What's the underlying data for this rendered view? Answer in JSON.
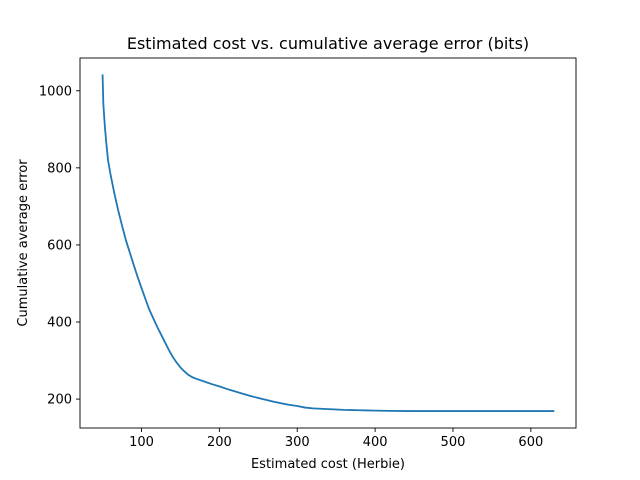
{
  "chart_data": {
    "type": "line",
    "title": "Estimated cost vs. cumulative average error (bits)",
    "xlabel": "Estimated cost (Herbie)",
    "ylabel": "Cumulative average error",
    "xlim": [
      21,
      658
    ],
    "ylim": [
      125,
      1085
    ],
    "xticks": [
      100,
      200,
      300,
      400,
      500,
      600
    ],
    "yticks": [
      200,
      400,
      600,
      800,
      1000
    ],
    "grid": false,
    "legend": "none",
    "series": [
      {
        "color": "#1f77b4",
        "x": [
          50,
          51,
          53,
          55,
          57,
          60,
          65,
          70,
          75,
          80,
          85,
          90,
          95,
          100,
          105,
          110,
          115,
          120,
          125,
          130,
          135,
          140,
          145,
          150,
          155,
          160,
          165,
          170,
          180,
          190,
          200,
          210,
          220,
          230,
          240,
          250,
          260,
          270,
          280,
          290,
          300,
          310,
          320,
          330,
          340,
          350,
          360,
          370,
          380,
          390,
          400,
          420,
          440,
          460,
          480,
          500,
          520,
          540,
          560,
          580,
          600,
          629
        ],
        "y": [
          1040,
          965,
          905,
          860,
          820,
          785,
          735,
          690,
          650,
          612,
          580,
          548,
          517,
          488,
          460,
          432,
          410,
          388,
          368,
          348,
          328,
          310,
          295,
          282,
          272,
          263,
          257,
          253,
          246,
          239,
          233,
          226,
          220,
          214,
          208,
          203,
          198,
          193,
          189,
          185,
          182,
          178,
          176,
          175,
          174,
          173,
          172,
          171.5,
          171,
          170.5,
          170,
          169.5,
          169,
          169,
          169,
          169,
          169,
          169,
          169,
          169,
          169,
          169
        ]
      }
    ]
  }
}
